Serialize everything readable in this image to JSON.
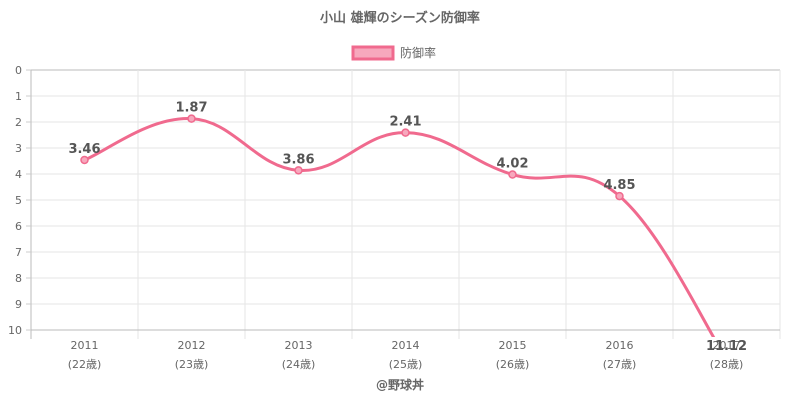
{
  "chart_data": {
    "type": "line",
    "title": "小山 雄輝のシーズン防御率",
    "legend": {
      "label": "防御率",
      "position": "top"
    },
    "categories": [
      "2011",
      "2012",
      "2013",
      "2014",
      "2015",
      "2016",
      "2017"
    ],
    "category_sublabels": [
      "(22歳)",
      "(23歳)",
      "(24歳)",
      "(25歳)",
      "(26歳)",
      "(27歳)",
      "(28歳)"
    ],
    "series": [
      {
        "name": "防御率",
        "values": [
          3.46,
          1.87,
          3.86,
          2.41,
          4.02,
          4.85,
          11.12
        ]
      }
    ],
    "ylim": [
      0,
      10
    ],
    "y_reversed": true,
    "y_ticks": [
      0,
      1,
      2,
      3,
      4,
      5,
      6,
      7,
      8,
      9,
      10
    ],
    "grid": true,
    "line_color": "#f06a8e",
    "fill_color": "#f7a8bd",
    "footer": "@野球丼"
  }
}
